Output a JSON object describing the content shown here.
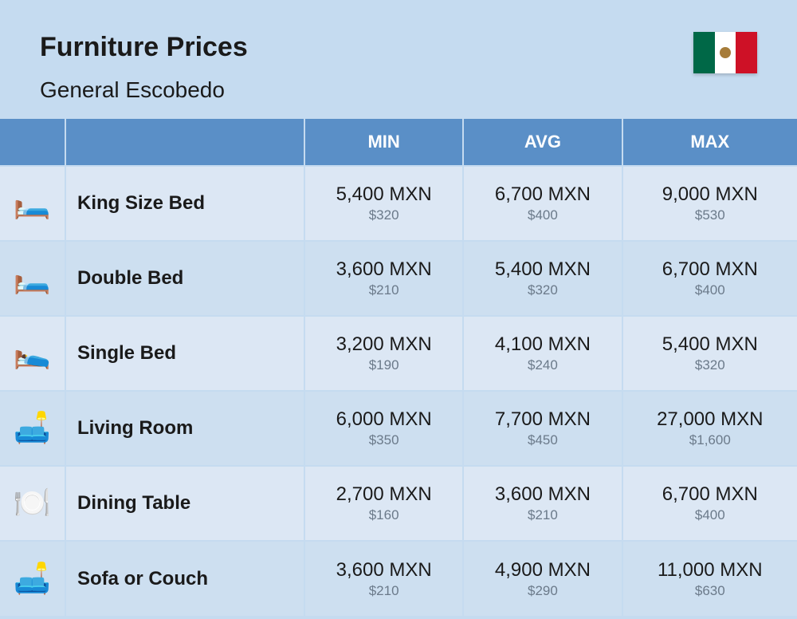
{
  "header": {
    "title": "Furniture Prices",
    "subtitle": "General Escobedo"
  },
  "table": {
    "columns": [
      "MIN",
      "AVG",
      "MAX"
    ],
    "header_bg": "#5a8fc7",
    "header_text_color": "#ffffff",
    "row_bg_odd": "#dce7f4",
    "row_bg_even": "#cddff0",
    "secondary_text_color": "#6b7a8a",
    "rows": [
      {
        "icon": "🛏️",
        "name": "King Size Bed",
        "min_mxn": "5,400 MXN",
        "min_usd": "$320",
        "avg_mxn": "6,700 MXN",
        "avg_usd": "$400",
        "max_mxn": "9,000 MXN",
        "max_usd": "$530"
      },
      {
        "icon": "🛏️",
        "name": "Double Bed",
        "min_mxn": "3,600 MXN",
        "min_usd": "$210",
        "avg_mxn": "5,400 MXN",
        "avg_usd": "$320",
        "max_mxn": "6,700 MXN",
        "max_usd": "$400"
      },
      {
        "icon": "🛌",
        "name": "Single Bed",
        "min_mxn": "3,200 MXN",
        "min_usd": "$190",
        "avg_mxn": "4,100 MXN",
        "avg_usd": "$240",
        "max_mxn": "5,400 MXN",
        "max_usd": "$320"
      },
      {
        "icon": "🛋️",
        "name": "Living Room",
        "min_mxn": "6,000 MXN",
        "min_usd": "$350",
        "avg_mxn": "7,700 MXN",
        "avg_usd": "$450",
        "max_mxn": "27,000 MXN",
        "max_usd": "$1,600"
      },
      {
        "icon": "🍽️",
        "name": "Dining Table",
        "min_mxn": "2,700 MXN",
        "min_usd": "$160",
        "avg_mxn": "3,600 MXN",
        "avg_usd": "$210",
        "max_mxn": "6,700 MXN",
        "max_usd": "$400"
      },
      {
        "icon": "🛋️",
        "name": "Sofa or Couch",
        "min_mxn": "3,600 MXN",
        "min_usd": "$210",
        "avg_mxn": "4,900 MXN",
        "avg_usd": "$290",
        "max_mxn": "11,000 MXN",
        "max_usd": "$630"
      }
    ]
  },
  "flag": {
    "green": "#006847",
    "white": "#ffffff",
    "red": "#ce1126"
  }
}
